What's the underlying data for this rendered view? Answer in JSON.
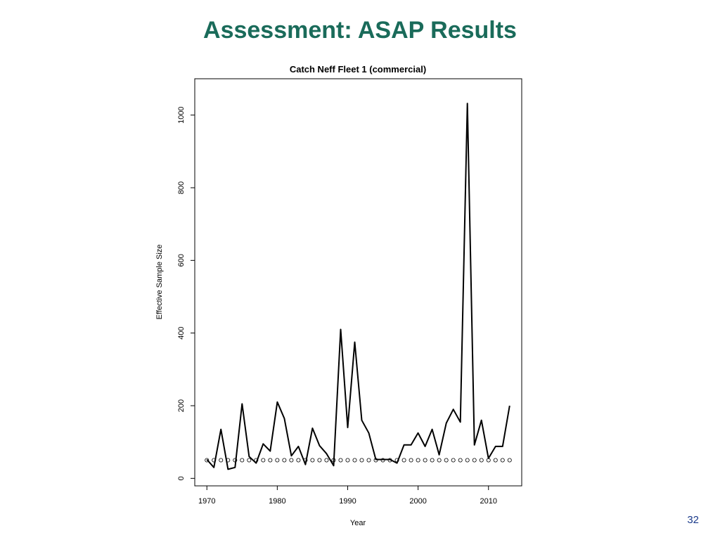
{
  "slide": {
    "title": "Assessment: ASAP Results",
    "page_number": "32",
    "title_color": "#1a6b5a"
  },
  "chart_data": {
    "type": "line",
    "title": "Catch Neff Fleet 1 (commercial)",
    "xlabel": "Year",
    "ylabel": "Effective Sample Size",
    "xlim": [
      1970,
      2013
    ],
    "ylim": [
      0,
      1100
    ],
    "xticks": [
      1970,
      1980,
      1990,
      2000,
      2010
    ],
    "yticks": [
      0,
      200,
      400,
      600,
      800,
      1000
    ],
    "grid": false,
    "series": [
      {
        "style": "line",
        "x": [
          1970,
          1971,
          1972,
          1973,
          1974,
          1975,
          1976,
          1977,
          1978,
          1979,
          1980,
          1981,
          1982,
          1983,
          1984,
          1985,
          1986,
          1987,
          1988,
          1989,
          1990,
          1991,
          1992,
          1993,
          1994,
          1995,
          1996,
          1997,
          1998,
          1999,
          2000,
          2001,
          2002,
          2003,
          2004,
          2005,
          2006,
          2007,
          2008,
          2009,
          2010,
          2011,
          2012,
          2013
        ],
        "values": [
          52,
          30,
          135,
          25,
          30,
          205,
          60,
          42,
          95,
          75,
          210,
          165,
          62,
          88,
          38,
          138,
          90,
          68,
          35,
          410,
          140,
          375,
          160,
          125,
          52,
          52,
          52,
          42,
          92,
          92,
          125,
          88,
          135,
          65,
          152,
          190,
          155,
          1032,
          92,
          160,
          55,
          88,
          88,
          200
        ]
      },
      {
        "style": "points",
        "x": [
          1970,
          1971,
          1972,
          1973,
          1974,
          1975,
          1976,
          1977,
          1978,
          1979,
          1980,
          1981,
          1982,
          1983,
          1984,
          1985,
          1986,
          1987,
          1988,
          1989,
          1990,
          1991,
          1992,
          1993,
          1994,
          1995,
          1996,
          1997,
          1998,
          1999,
          2000,
          2001,
          2002,
          2003,
          2004,
          2005,
          2006,
          2007,
          2008,
          2009,
          2010,
          2011,
          2012,
          2013
        ],
        "values": [
          50,
          50,
          50,
          50,
          50,
          50,
          50,
          50,
          50,
          50,
          50,
          50,
          50,
          50,
          50,
          50,
          50,
          50,
          50,
          50,
          50,
          50,
          50,
          50,
          50,
          50,
          50,
          50,
          50,
          50,
          50,
          50,
          50,
          50,
          50,
          50,
          50,
          50,
          50,
          50,
          50,
          50,
          50,
          50
        ]
      }
    ]
  }
}
